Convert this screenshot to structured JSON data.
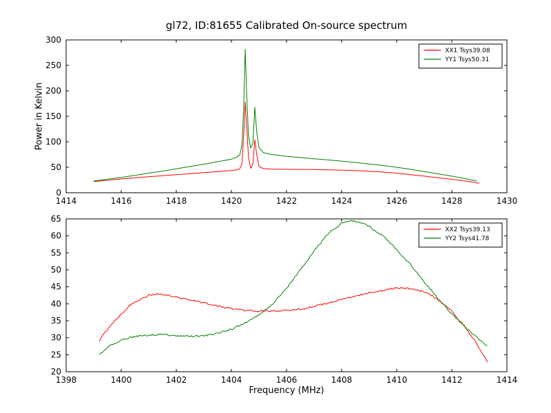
{
  "figure": {
    "title": "gl72, ID:81655 Calibrated On-source spectrum",
    "background": "#ffffff",
    "axis_color": "#000000"
  },
  "chart_data": [
    {
      "type": "line",
      "position": "top",
      "title": "",
      "xlabel": "",
      "ylabel": "Power in Kelvin",
      "xlim": [
        1414,
        1430
      ],
      "ylim": [
        0,
        300
      ],
      "xticks": [
        1414,
        1416,
        1418,
        1420,
        1422,
        1424,
        1426,
        1428,
        1430
      ],
      "yticks": [
        0,
        50,
        100,
        150,
        200,
        250,
        300
      ],
      "grid": false,
      "legend_position": "upper right",
      "series": [
        {
          "name": "XX1 Tsys39.08",
          "color": "#ff0000",
          "noise": 0,
          "points": [
            [
              1415.0,
              22
            ],
            [
              1415.5,
              24.5
            ],
            [
              1416,
              27
            ],
            [
              1416.5,
              29.3
            ],
            [
              1417,
              31.5
            ],
            [
              1417.5,
              33.5
            ],
            [
              1418,
              35.5
            ],
            [
              1418.5,
              37.5
            ],
            [
              1419,
              39.5
            ],
            [
              1419.5,
              41.5
            ],
            [
              1420.0,
              43.5
            ],
            [
              1420.2,
              45
            ],
            [
              1420.3,
              47
            ],
            [
              1420.38,
              56
            ],
            [
              1420.44,
              105
            ],
            [
              1420.5,
              178
            ],
            [
              1420.56,
              125
            ],
            [
              1420.62,
              70
            ],
            [
              1420.7,
              48
            ],
            [
              1420.78,
              56
            ],
            [
              1420.85,
              104
            ],
            [
              1420.92,
              74
            ],
            [
              1421.0,
              52
            ],
            [
              1421.15,
              47.5
            ],
            [
              1421.4,
              46.5
            ],
            [
              1422,
              46
            ],
            [
              1422.5,
              45.8
            ],
            [
              1423,
              45.5
            ],
            [
              1423.5,
              45
            ],
            [
              1424,
              44.5
            ],
            [
              1424.5,
              43.5
            ],
            [
              1425,
              42
            ],
            [
              1425.5,
              40.5
            ],
            [
              1426,
              38.5
            ],
            [
              1426.5,
              35.5
            ],
            [
              1427,
              32.5
            ],
            [
              1427.5,
              29.5
            ],
            [
              1428,
              26.5
            ],
            [
              1428.5,
              23
            ],
            [
              1429,
              18.5
            ]
          ]
        },
        {
          "name": "YY1 Tsys50.31",
          "color": "#008000",
          "noise": 0,
          "points": [
            [
              1415.0,
              23
            ],
            [
              1415.5,
              26.5
            ],
            [
              1416,
              30
            ],
            [
              1416.5,
              34
            ],
            [
              1417,
              38.5
            ],
            [
              1417.5,
              42.5
            ],
            [
              1418,
              47
            ],
            [
              1418.5,
              51.5
            ],
            [
              1419,
              56
            ],
            [
              1419.5,
              61
            ],
            [
              1420.0,
              66
            ],
            [
              1420.2,
              70
            ],
            [
              1420.3,
              74
            ],
            [
              1420.38,
              92
            ],
            [
              1420.44,
              160
            ],
            [
              1420.5,
              282
            ],
            [
              1420.56,
              185
            ],
            [
              1420.62,
              112
            ],
            [
              1420.7,
              88
            ],
            [
              1420.78,
              97
            ],
            [
              1420.85,
              168
            ],
            [
              1420.92,
              118
            ],
            [
              1421.0,
              89
            ],
            [
              1421.15,
              79
            ],
            [
              1421.4,
              75.5
            ],
            [
              1422,
              71.5
            ],
            [
              1422.5,
              69
            ],
            [
              1423,
              66.5
            ],
            [
              1423.5,
              64.5
            ],
            [
              1424,
              62
            ],
            [
              1424.5,
              59.5
            ],
            [
              1425,
              56.5
            ],
            [
              1425.5,
              53.5
            ],
            [
              1426,
              50
            ],
            [
              1426.5,
              46
            ],
            [
              1427,
              41.5
            ],
            [
              1427.5,
              37
            ],
            [
              1428,
              32.5
            ],
            [
              1428.5,
              27.5
            ],
            [
              1428.9,
              23
            ]
          ]
        }
      ]
    },
    {
      "type": "line",
      "position": "bottom",
      "title": "",
      "xlabel": "Frequency (MHz)",
      "ylabel": "",
      "xlim": [
        1398,
        1414
      ],
      "ylim": [
        20,
        65
      ],
      "xticks": [
        1398,
        1400,
        1402,
        1404,
        1406,
        1408,
        1410,
        1412,
        1414
      ],
      "yticks": [
        20,
        25,
        30,
        35,
        40,
        45,
        50,
        55,
        60,
        65
      ],
      "grid": false,
      "legend_position": "upper right",
      "series": [
        {
          "name": "XX2 Tsys39.13",
          "color": "#ff0000",
          "noise": 0.25,
          "points": [
            [
              1399.2,
              29
            ],
            [
              1399.4,
              31.5
            ],
            [
              1399.7,
              34.5
            ],
            [
              1400,
              37
            ],
            [
              1400.3,
              39.5
            ],
            [
              1400.6,
              41
            ],
            [
              1401,
              42.5
            ],
            [
              1401.3,
              42.8
            ],
            [
              1401.6,
              42.6
            ],
            [
              1402,
              42
            ],
            [
              1402.5,
              41.2
            ],
            [
              1403,
              40.3
            ],
            [
              1403.5,
              39.3
            ],
            [
              1404,
              38.6
            ],
            [
              1404.5,
              38.1
            ],
            [
              1405,
              37.9
            ],
            [
              1405.5,
              37.8
            ],
            [
              1406,
              38
            ],
            [
              1406.5,
              38.4
            ],
            [
              1407,
              39.2
            ],
            [
              1407.5,
              40.2
            ],
            [
              1408,
              41.2
            ],
            [
              1408.5,
              42.3
            ],
            [
              1409,
              43.3
            ],
            [
              1409.5,
              44
            ],
            [
              1410,
              44.6
            ],
            [
              1410.3,
              44.6
            ],
            [
              1410.7,
              44.2
            ],
            [
              1411,
              43.5
            ],
            [
              1411.3,
              42.3
            ],
            [
              1411.6,
              40.5
            ],
            [
              1412,
              37.8
            ],
            [
              1412.4,
              34
            ],
            [
              1412.8,
              29.5
            ],
            [
              1413.1,
              25.5
            ],
            [
              1413.3,
              23
            ]
          ]
        },
        {
          "name": "YY2 Tsys41.78",
          "color": "#008000",
          "noise": 0.25,
          "points": [
            [
              1399.2,
              25
            ],
            [
              1399.5,
              27.2
            ],
            [
              1400,
              29.3
            ],
            [
              1400.5,
              30.4
            ],
            [
              1401,
              30.8
            ],
            [
              1401.5,
              31
            ],
            [
              1402,
              30.6
            ],
            [
              1402.5,
              30.4
            ],
            [
              1403,
              30.6
            ],
            [
              1403.5,
              31.3
            ],
            [
              1404,
              32.5
            ],
            [
              1404.5,
              34.3
            ],
            [
              1405,
              36.8
            ],
            [
              1405.5,
              40
            ],
            [
              1406,
              44.5
            ],
            [
              1406.5,
              50
            ],
            [
              1407,
              55.5
            ],
            [
              1407.5,
              60.5
            ],
            [
              1408,
              63.8
            ],
            [
              1408.3,
              64.5
            ],
            [
              1408.6,
              64.2
            ],
            [
              1409,
              62.8
            ],
            [
              1409.5,
              60
            ],
            [
              1410,
              56
            ],
            [
              1410.5,
              51.5
            ],
            [
              1411,
              46.5
            ],
            [
              1411.5,
              41.5
            ],
            [
              1412,
              37
            ],
            [
              1412.5,
              33
            ],
            [
              1413,
              29.5
            ],
            [
              1413.3,
              27.5
            ]
          ]
        }
      ]
    }
  ]
}
